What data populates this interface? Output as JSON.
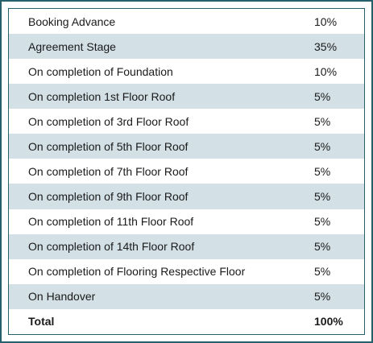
{
  "table": {
    "rows": [
      [
        "Booking Advance",
        "10%"
      ],
      [
        "Agreement Stage",
        "35%"
      ],
      [
        "On completion of Foundation",
        "10%"
      ],
      [
        "On completion 1st Floor Roof",
        "5%"
      ],
      [
        "On completion of 3rd Floor Roof",
        "5%"
      ],
      [
        "On completion of 5th Floor Roof",
        "5%"
      ],
      [
        "On completion of 7th Floor Roof",
        "5%"
      ],
      [
        "On completion of 9th Floor Roof",
        "5%"
      ],
      [
        "On completion of 11th Floor Roof",
        "5%"
      ],
      [
        "On completion of 14th Floor Roof",
        "5%"
      ],
      [
        "On completion of Flooring Respective Floor",
        "5%"
      ],
      [
        "On Handover",
        "5%"
      ]
    ],
    "total": [
      "Total",
      "100%"
    ]
  }
}
